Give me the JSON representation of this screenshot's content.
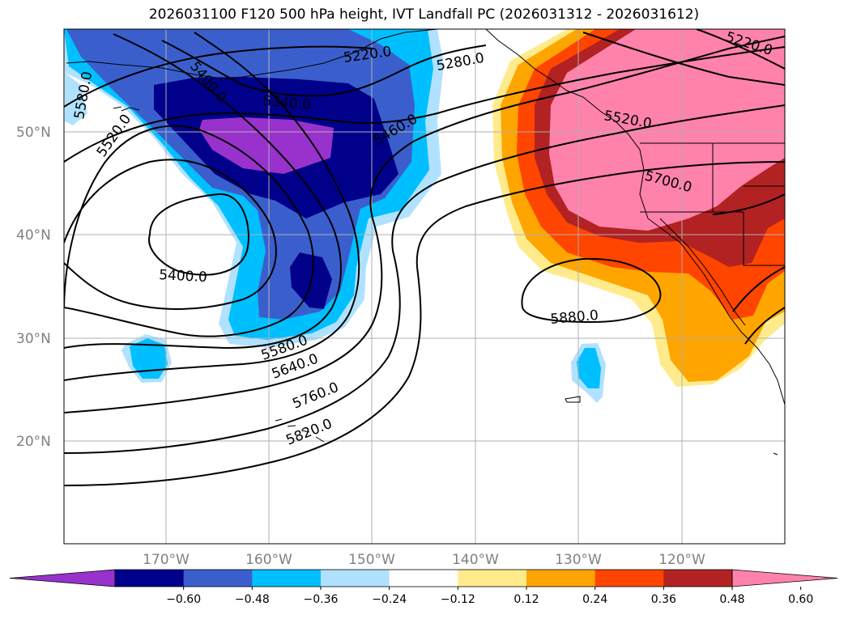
{
  "title": "2026031100 F120 500 hPa height, IVT Landfall PC (2026031312 - 2026031612)",
  "map": {
    "lon_range": [
      -180,
      -110
    ],
    "lat_range": [
      10,
      60
    ],
    "lat_ticks": [
      {
        "value": 20,
        "label": "20°N"
      },
      {
        "value": 30,
        "label": "30°N"
      },
      {
        "value": 40,
        "label": "40°N"
      },
      {
        "value": 50,
        "label": "50°N"
      }
    ],
    "lon_ticks": [
      {
        "value": -170,
        "label": "170°W"
      },
      {
        "value": -160,
        "label": "160°W"
      },
      {
        "value": -150,
        "label": "150°W"
      },
      {
        "value": -140,
        "label": "140°W"
      },
      {
        "value": -130,
        "label": "130°W"
      },
      {
        "value": -120,
        "label": "120°W"
      }
    ],
    "contour_labels": [
      "5220.0",
      "5280.0",
      "5340.0",
      "5400.0",
      "5460.0",
      "5520.0",
      "5580.0",
      "5640.0",
      "5700.0",
      "5760.0",
      "5820.0",
      "5880.0",
      "5400.0",
      "5520.0",
      "5580.0",
      "5220.0"
    ]
  },
  "colorbar": {
    "ticks": [
      "−0.60",
      "−0.48",
      "−0.36",
      "−0.24",
      "−0.12",
      "0.12",
      "0.24",
      "0.36",
      "0.48",
      "0.60"
    ],
    "colors": [
      "#9932cc",
      "#00008b",
      "#3a5fcd",
      "#00bfff",
      "#b0e2ff",
      "#ffffff",
      "#ffeb8c",
      "#ffa500",
      "#ff4500",
      "#b22222",
      "#ff82ab"
    ]
  }
}
